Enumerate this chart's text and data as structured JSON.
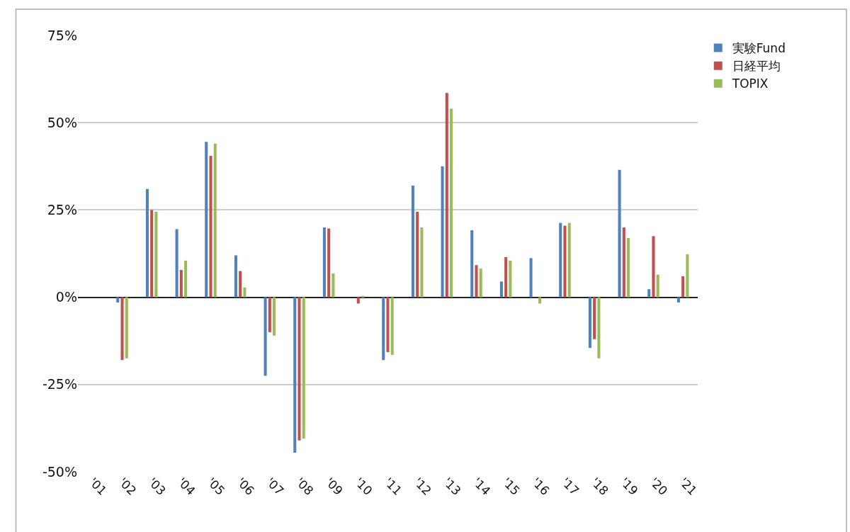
{
  "chart_data": {
    "type": "bar",
    "categories": [
      "'01",
      "'02",
      "'03",
      "'04",
      "'05",
      "'06",
      "'07",
      "'08",
      "'09",
      "'10",
      "'11",
      "'12",
      "'13",
      "'14",
      "'15",
      "'16",
      "'17",
      "'18",
      "'19",
      "'20",
      "'21"
    ],
    "series": [
      {
        "name": "実験Fund",
        "color": "#4f81bd",
        "values": [
          null,
          -1.5,
          31,
          19.5,
          44.5,
          12,
          -22.5,
          -44.5,
          20,
          null,
          -18,
          32,
          37.5,
          19.2,
          4.5,
          11.2,
          21.3,
          -14.5,
          36.5,
          2.3,
          -1.5
        ]
      },
      {
        "name": "日経平均",
        "color": "#c0504d",
        "values": [
          null,
          -18,
          25,
          7.8,
          40.5,
          7.5,
          -10,
          -41,
          19.7,
          -1.8,
          -15.7,
          24.5,
          58.5,
          9.2,
          11.5,
          0,
          20.5,
          -12,
          20,
          17.5,
          6
        ]
      },
      {
        "name": "TOPIX",
        "color": "#9bbb59",
        "values": [
          null,
          -17.5,
          24.5,
          10.5,
          44,
          2.8,
          -11,
          -40.5,
          6.8,
          0.4,
          -16.5,
          20,
          54,
          8.2,
          10.5,
          -1.8,
          21.3,
          -17.5,
          17,
          6.5,
          12.3
        ]
      }
    ],
    "ylim": [
      -50,
      75
    ],
    "yticks": [
      {
        "value": -50,
        "label": "-50%"
      },
      {
        "value": -25,
        "label": "-25%"
      },
      {
        "value": 0,
        "label": "0%"
      },
      {
        "value": 25,
        "label": "25%"
      },
      {
        "value": 50,
        "label": "50%"
      },
      {
        "value": 75,
        "label": "75%"
      }
    ],
    "grid": "y",
    "legend": "top right"
  }
}
